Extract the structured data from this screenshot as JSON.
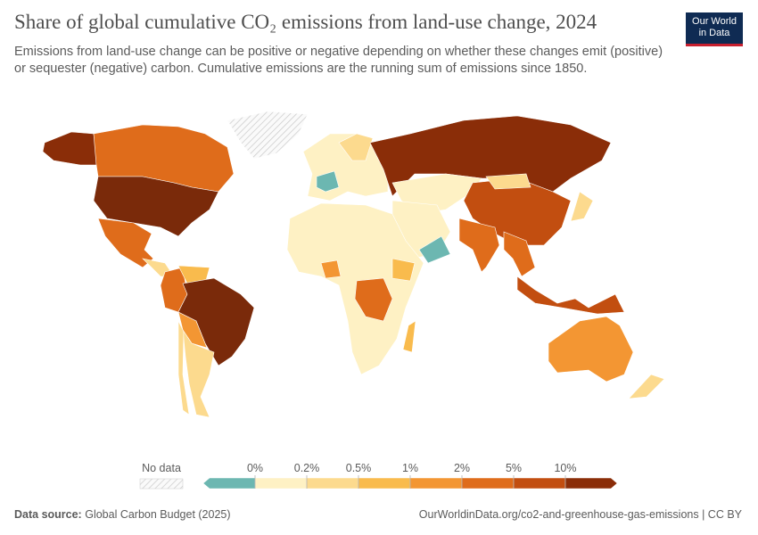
{
  "header": {
    "title": "Share of global cumulative CO₂ emissions from land-use change, 2024",
    "subtitle_line1": "Emissions from land-use change can be positive or negative depending on whether these changes emit (positive)",
    "subtitle_line2": "or sequester (negative) carbon. Cumulative emissions are the running sum of emissions since 1850."
  },
  "logo": {
    "line1": "Our World",
    "line2": "in Data"
  },
  "legend": {
    "no_data": "No data",
    "labels": [
      "0%",
      "0.2%",
      "0.5%",
      "1%",
      "2%",
      "5%",
      "10%"
    ],
    "colors": [
      "#6cb7b1",
      "#fef1c4",
      "#fcda8e",
      "#f9bb4d",
      "#f39633",
      "#df6c1b",
      "#c24e10",
      "#8a2d08"
    ]
  },
  "footer": {
    "source_label": "Data source:",
    "source": "Global Carbon Budget (2025)",
    "url": "OurWorldinData.org/co2-and-greenhouse-gas-emissions | CC BY"
  }
}
